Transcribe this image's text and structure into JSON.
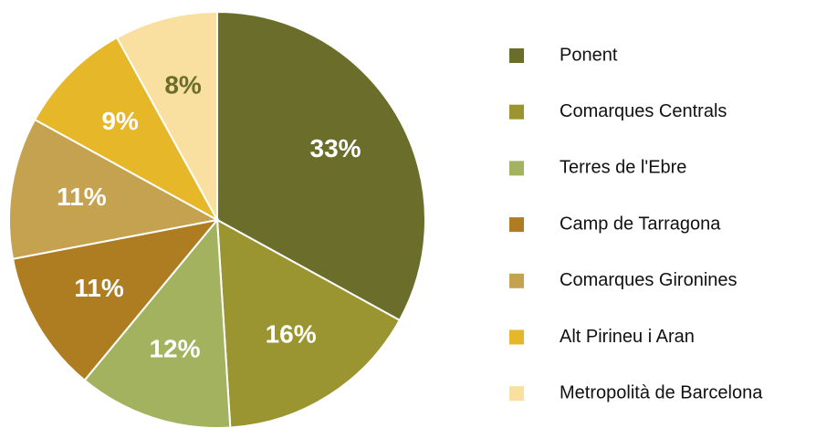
{
  "chart_data": {
    "type": "pie",
    "categories": [
      "Ponent",
      "Comarques Centrals",
      "Terres de l'Ebre",
      "Camp de Tarragona",
      "Comarques Gironines",
      "Alt Pirineu i Aran",
      "Metropolità de Barcelona"
    ],
    "values": [
      33,
      16,
      12,
      11,
      11,
      9,
      8
    ],
    "value_labels": [
      "33%",
      "16%",
      "12%",
      "11%",
      "11%",
      "9%",
      "8%"
    ],
    "colors": [
      "#6b6e2a",
      "#9a9530",
      "#a3b25e",
      "#ae7d22",
      "#c5a24f",
      "#e6b729",
      "#f9dfa0"
    ],
    "label_colors": [
      "#ffffff",
      "#ffffff",
      "#ffffff",
      "#ffffff",
      "#ffffff",
      "#ffffff",
      "#6b6e2a"
    ],
    "legend": "right"
  }
}
